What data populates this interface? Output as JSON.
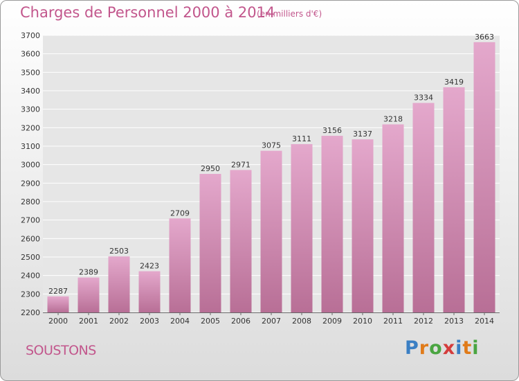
{
  "header": {
    "title": "Charges de Personnel 2000 à 2014",
    "subtitle": "(en milliers d'€)"
  },
  "footer": {
    "commune": "SOUSTONS",
    "brand": "Proxiti",
    "brand_colors": [
      "#3a7fc4",
      "#e07b1a",
      "#4aa541",
      "#d43c3c",
      "#3a7fc4",
      "#e07b1a",
      "#4aa541"
    ]
  },
  "colors": {
    "bar_top": "#e4a8cc",
    "bar_bottom": "#b86f96",
    "title": "#c2568c",
    "grid": "#ffffff"
  },
  "chart_data": {
    "type": "bar",
    "categories": [
      "2000",
      "2001",
      "2002",
      "2003",
      "2004",
      "2005",
      "2006",
      "2007",
      "2008",
      "2009",
      "2010",
      "2011",
      "2012",
      "2013",
      "2014"
    ],
    "values": [
      2287,
      2389,
      2503,
      2423,
      2709,
      2950,
      2971,
      3075,
      3111,
      3156,
      3137,
      3218,
      3334,
      3419,
      3663
    ],
    "y_ticks": [
      2200,
      2300,
      2400,
      2500,
      2600,
      2700,
      2800,
      2900,
      3000,
      3100,
      3200,
      3300,
      3400,
      3500,
      3600,
      3700
    ],
    "ylim": [
      2200,
      3700
    ],
    "grid": true,
    "data_labels": true
  }
}
